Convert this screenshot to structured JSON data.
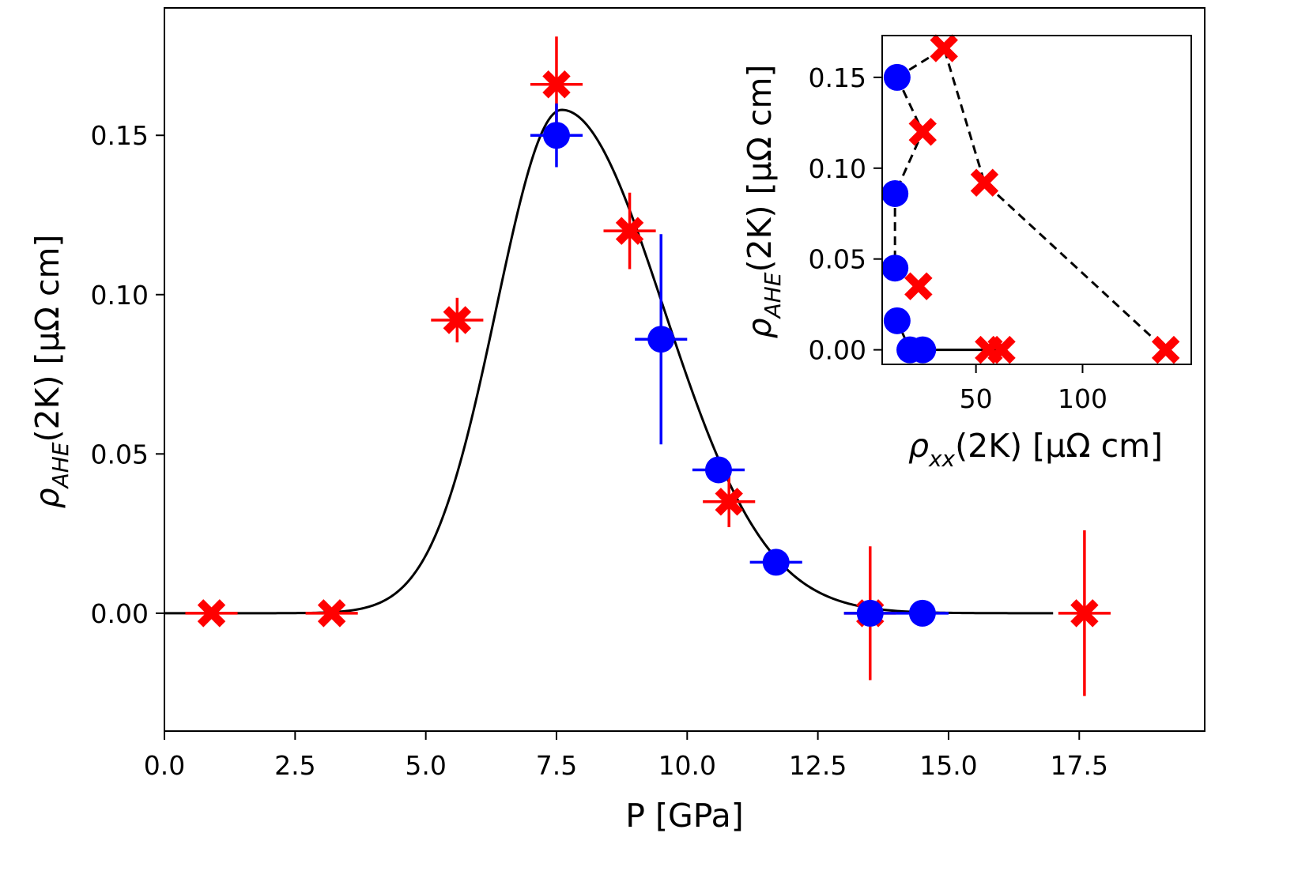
{
  "chart_data": [
    {
      "type": "scatter",
      "xlabel": "P [GPa]",
      "ylabel_symbol": "ρ",
      "ylabel_subscript": "AHE",
      "ylabel_rest": "(2K) [μΩ cm]",
      "xlim": [
        0.0,
        19.9
      ],
      "ylim": [
        -0.037,
        0.19
      ],
      "xticks": [
        "0.0",
        "2.5",
        "5.0",
        "7.5",
        "10.0",
        "12.5",
        "15.0",
        "17.5"
      ],
      "yticks": [
        "0.00",
        "0.05",
        "0.10",
        "0.15"
      ],
      "series": [
        {
          "name": "red-crosses",
          "color": "#ff0000",
          "marker": "X",
          "x": [
            0.9,
            3.2,
            5.6,
            7.5,
            8.9,
            10.8,
            13.5,
            17.6
          ],
          "y": [
            0.0,
            0.0,
            0.092,
            0.166,
            0.12,
            0.035,
            0.0,
            0.0
          ],
          "xerr": [
            0.5,
            0.5,
            0.5,
            0.5,
            0.5,
            0.5,
            0.5,
            0.5
          ],
          "yerr": [
            0.0,
            0.0,
            0.007,
            0.015,
            0.012,
            0.008,
            0.021,
            0.026
          ]
        },
        {
          "name": "blue-circles",
          "color": "#0000ff",
          "marker": "o",
          "x": [
            7.5,
            9.5,
            10.6,
            11.7,
            13.5,
            14.5
          ],
          "y": [
            0.15,
            0.086,
            0.045,
            0.016,
            0.0,
            0.0
          ],
          "xerr": [
            0.5,
            0.5,
            0.5,
            0.5,
            0.5,
            0.5
          ],
          "yerr": [
            0.01,
            0.033,
            0.0,
            0.0,
            0.0,
            0.0
          ]
        }
      ],
      "fit": {
        "name": "fit-curve",
        "color": "#000000",
        "type": "asymmetric-gaussian",
        "amplitude": 0.158,
        "center": 7.6,
        "sigma_left": 1.25,
        "sigma_right": 1.95,
        "x_range": [
          0.0,
          17.0
        ]
      }
    },
    {
      "type": "scatter",
      "inset": true,
      "xlabel_symbol": "ρ",
      "xlabel_subscript": "xx",
      "xlabel_rest": "(2K) [μΩ cm]",
      "ylabel_symbol": "ρ",
      "ylabel_subscript": "AHE",
      "ylabel_rest": "(2K) [μΩ cm]",
      "xlim": [
        6,
        151
      ],
      "ylim": [
        -0.008,
        0.173
      ],
      "xticks": [
        "50",
        "100"
      ],
      "yticks": [
        "0.00",
        "0.05",
        "0.10",
        "0.15"
      ],
      "series": [
        {
          "name": "inset-blue-circles",
          "color": "#0000ff",
          "marker": "o",
          "x": [
            13,
            12,
            12,
            13,
            19,
            25
          ],
          "y": [
            0.15,
            0.086,
            0.045,
            0.016,
            0.0,
            0.0
          ]
        },
        {
          "name": "inset-red-crosses",
          "color": "#ff0000",
          "marker": "X",
          "x": [
            35,
            25,
            54,
            23,
            56,
            62,
            139
          ],
          "y": [
            0.166,
            0.12,
            0.092,
            0.035,
            0.0,
            0.0,
            0.0
          ]
        }
      ],
      "dashed_path": {
        "color": "#000000",
        "x": [
          13,
          35,
          54,
          139
        ],
        "y": [
          0.15,
          0.166,
          0.092,
          0.0
        ]
      },
      "dashed_path_2": {
        "color": "#000000",
        "x": [
          13,
          25,
          12,
          12
        ],
        "y": [
          0.15,
          0.12,
          0.086,
          0.045
        ]
      },
      "solid_path": {
        "color": "#000000",
        "x": [
          13,
          19,
          25,
          56,
          62
        ],
        "y": [
          0.016,
          0.0,
          0.0,
          0.0,
          0.0
        ]
      }
    }
  ]
}
